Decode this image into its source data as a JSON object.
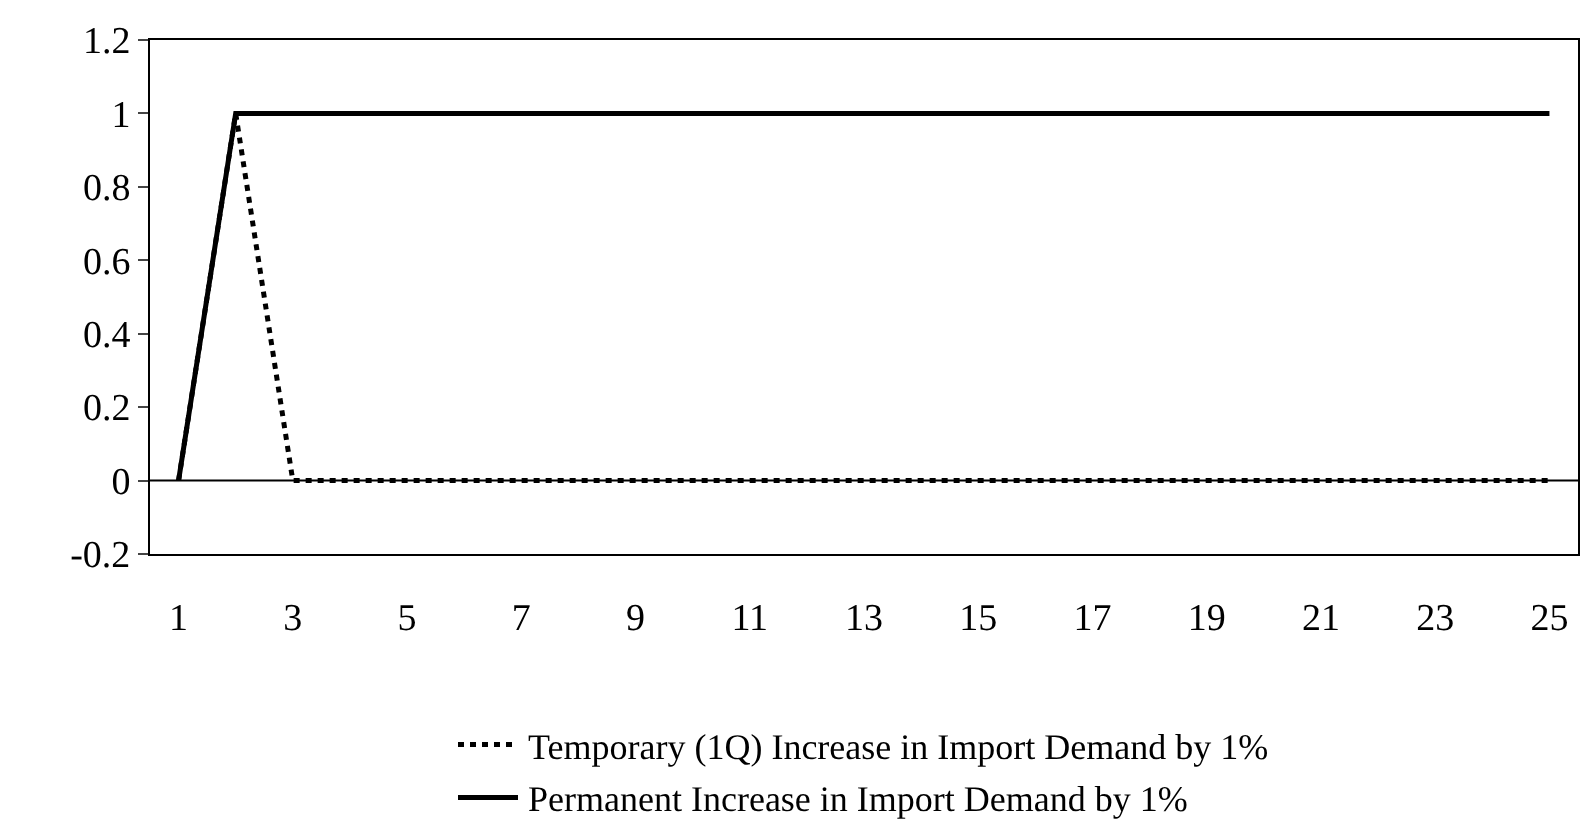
{
  "chart_data": {
    "type": "line",
    "x": [
      1,
      2,
      3,
      4,
      5,
      6,
      7,
      8,
      9,
      10,
      11,
      12,
      13,
      14,
      15,
      16,
      17,
      18,
      19,
      20,
      21,
      22,
      23,
      24,
      25
    ],
    "series": [
      {
        "name": "Temporary (1Q) Increase in Import Demand by 1%",
        "color": "#000000",
        "line_style": "dashed",
        "values": [
          0,
          1,
          0,
          0,
          0,
          0,
          0,
          0,
          0,
          0,
          0,
          0,
          0,
          0,
          0,
          0,
          0,
          0,
          0,
          0,
          0,
          0,
          0,
          0,
          0
        ]
      },
      {
        "name": "Permanent Increase in Import Demand by 1%",
        "color": "#000000",
        "line_style": "solid",
        "values": [
          0,
          1,
          1,
          1,
          1,
          1,
          1,
          1,
          1,
          1,
          1,
          1,
          1,
          1,
          1,
          1,
          1,
          1,
          1,
          1,
          1,
          1,
          1,
          1,
          1
        ]
      }
    ],
    "xlim": [
      0.5,
      25.5
    ],
    "xticks": [
      1,
      3,
      5,
      7,
      9,
      11,
      13,
      15,
      17,
      19,
      21,
      23,
      25
    ],
    "ylim": [
      -0.2,
      1.2
    ],
    "yticks": [
      -0.2,
      0,
      0.2,
      0.4,
      0.6,
      0.8,
      1,
      1.2
    ],
    "ref_lines": [
      {
        "axis": "y",
        "value": 0
      }
    ],
    "grid": false,
    "legend": "bottom",
    "marker": "none"
  }
}
